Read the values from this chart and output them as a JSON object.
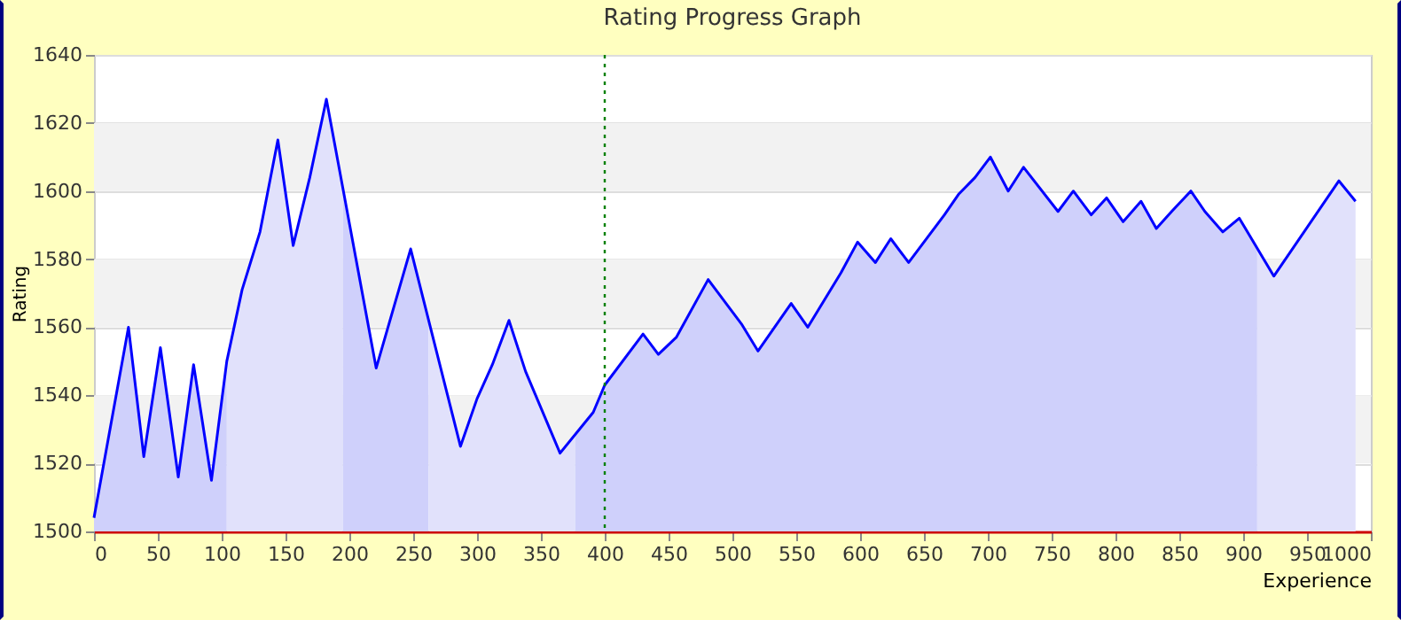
{
  "chart_data": {
    "type": "line",
    "title": "Rating Progress Graph",
    "xlabel": "Experience",
    "ylabel": "Rating",
    "xlim": [
      0,
      1000
    ],
    "xticks": [
      0,
      50,
      100,
      150,
      200,
      250,
      300,
      350,
      400,
      450,
      500,
      550,
      600,
      650,
      700,
      750,
      800,
      850,
      900,
      950,
      1000
    ],
    "ylim": [
      1500,
      1640
    ],
    "yticks": [
      1500,
      1520,
      1540,
      1560,
      1580,
      1600,
      1620,
      1640
    ],
    "grid": "y",
    "legend": false,
    "marker": "none",
    "line_style": "solid",
    "ref_lines": [
      {
        "axis": "x",
        "value": 400,
        "color": "#008000",
        "line_style": "dotted"
      }
    ],
    "series": [
      {
        "type": "area",
        "color": "#cfd0fb",
        "x": [
          0,
          27,
          39,
          52,
          66,
          78,
          92,
          104
        ],
        "values": [
          1504,
          1560,
          1522,
          1554,
          1516,
          1549,
          1515,
          1550
        ]
      },
      {
        "type": "area",
        "color": "#e1e1fb",
        "x": [
          104,
          116,
          130,
          144,
          156,
          169,
          182,
          195
        ],
        "values": [
          1550,
          1571,
          1588,
          1615,
          1584,
          1604,
          1627,
          1599
        ]
      },
      {
        "type": "area",
        "color": "#cfd0fb",
        "x": [
          195,
          221,
          248,
          262
        ],
        "values": [
          1599,
          1548,
          1583,
          1563
        ]
      },
      {
        "type": "area",
        "color": "#e1e1fb",
        "x": [
          262,
          287,
          300,
          312,
          325,
          338,
          365,
          377
        ],
        "values": [
          1563,
          1525,
          1539,
          1549,
          1562,
          1547,
          1523,
          1529
        ]
      },
      {
        "type": "area",
        "color": "#cfd0fb",
        "x": [
          377,
          391,
          400,
          430,
          442,
          456,
          481,
          507,
          520,
          546,
          559,
          585,
          598,
          612,
          624,
          638,
          666,
          677,
          690,
          702,
          716,
          728,
          755,
          767,
          781,
          793,
          806,
          820,
          832,
          844,
          859,
          870,
          884,
          897,
          911
        ],
        "values": [
          1529,
          1535,
          1543,
          1558,
          1552,
          1557,
          1574,
          1561,
          1553,
          1567,
          1560,
          1576,
          1585,
          1579,
          1586,
          1579,
          1593,
          1599,
          1604,
          1610,
          1600,
          1607,
          1594,
          1600,
          1593,
          1598,
          1591,
          1597,
          1589,
          1594,
          1600,
          1594,
          1588,
          1592,
          1583
        ]
      },
      {
        "type": "area",
        "color": "#e1e1fb",
        "x": [
          911,
          924,
          975,
          988
        ],
        "values": [
          1583,
          1575,
          1603,
          1597
        ]
      },
      {
        "type": "line",
        "color": "#0000ff",
        "x": [
          0,
          27,
          39,
          52,
          66,
          78,
          92,
          104,
          116,
          130,
          144,
          156,
          169,
          182,
          221,
          248,
          287,
          300,
          312,
          325,
          338,
          365,
          391,
          400,
          430,
          442,
          456,
          481,
          507,
          520,
          546,
          559,
          585,
          598,
          612,
          624,
          638,
          666,
          677,
          690,
          702,
          716,
          728,
          755,
          767,
          781,
          793,
          806,
          820,
          832,
          844,
          859,
          870,
          884,
          897,
          924,
          975,
          988
        ],
        "values": [
          1504,
          1560,
          1522,
          1554,
          1516,
          1549,
          1515,
          1550,
          1571,
          1588,
          1615,
          1584,
          1604,
          1627,
          1548,
          1583,
          1525,
          1539,
          1549,
          1562,
          1547,
          1523,
          1535,
          1543,
          1558,
          1552,
          1557,
          1574,
          1561,
          1553,
          1567,
          1560,
          1576,
          1585,
          1579,
          1586,
          1579,
          1593,
          1599,
          1604,
          1610,
          1600,
          1607,
          1594,
          1600,
          1593,
          1598,
          1591,
          1597,
          1589,
          1594,
          1600,
          1594,
          1588,
          1592,
          1575,
          1603,
          1597
        ]
      }
    ]
  }
}
